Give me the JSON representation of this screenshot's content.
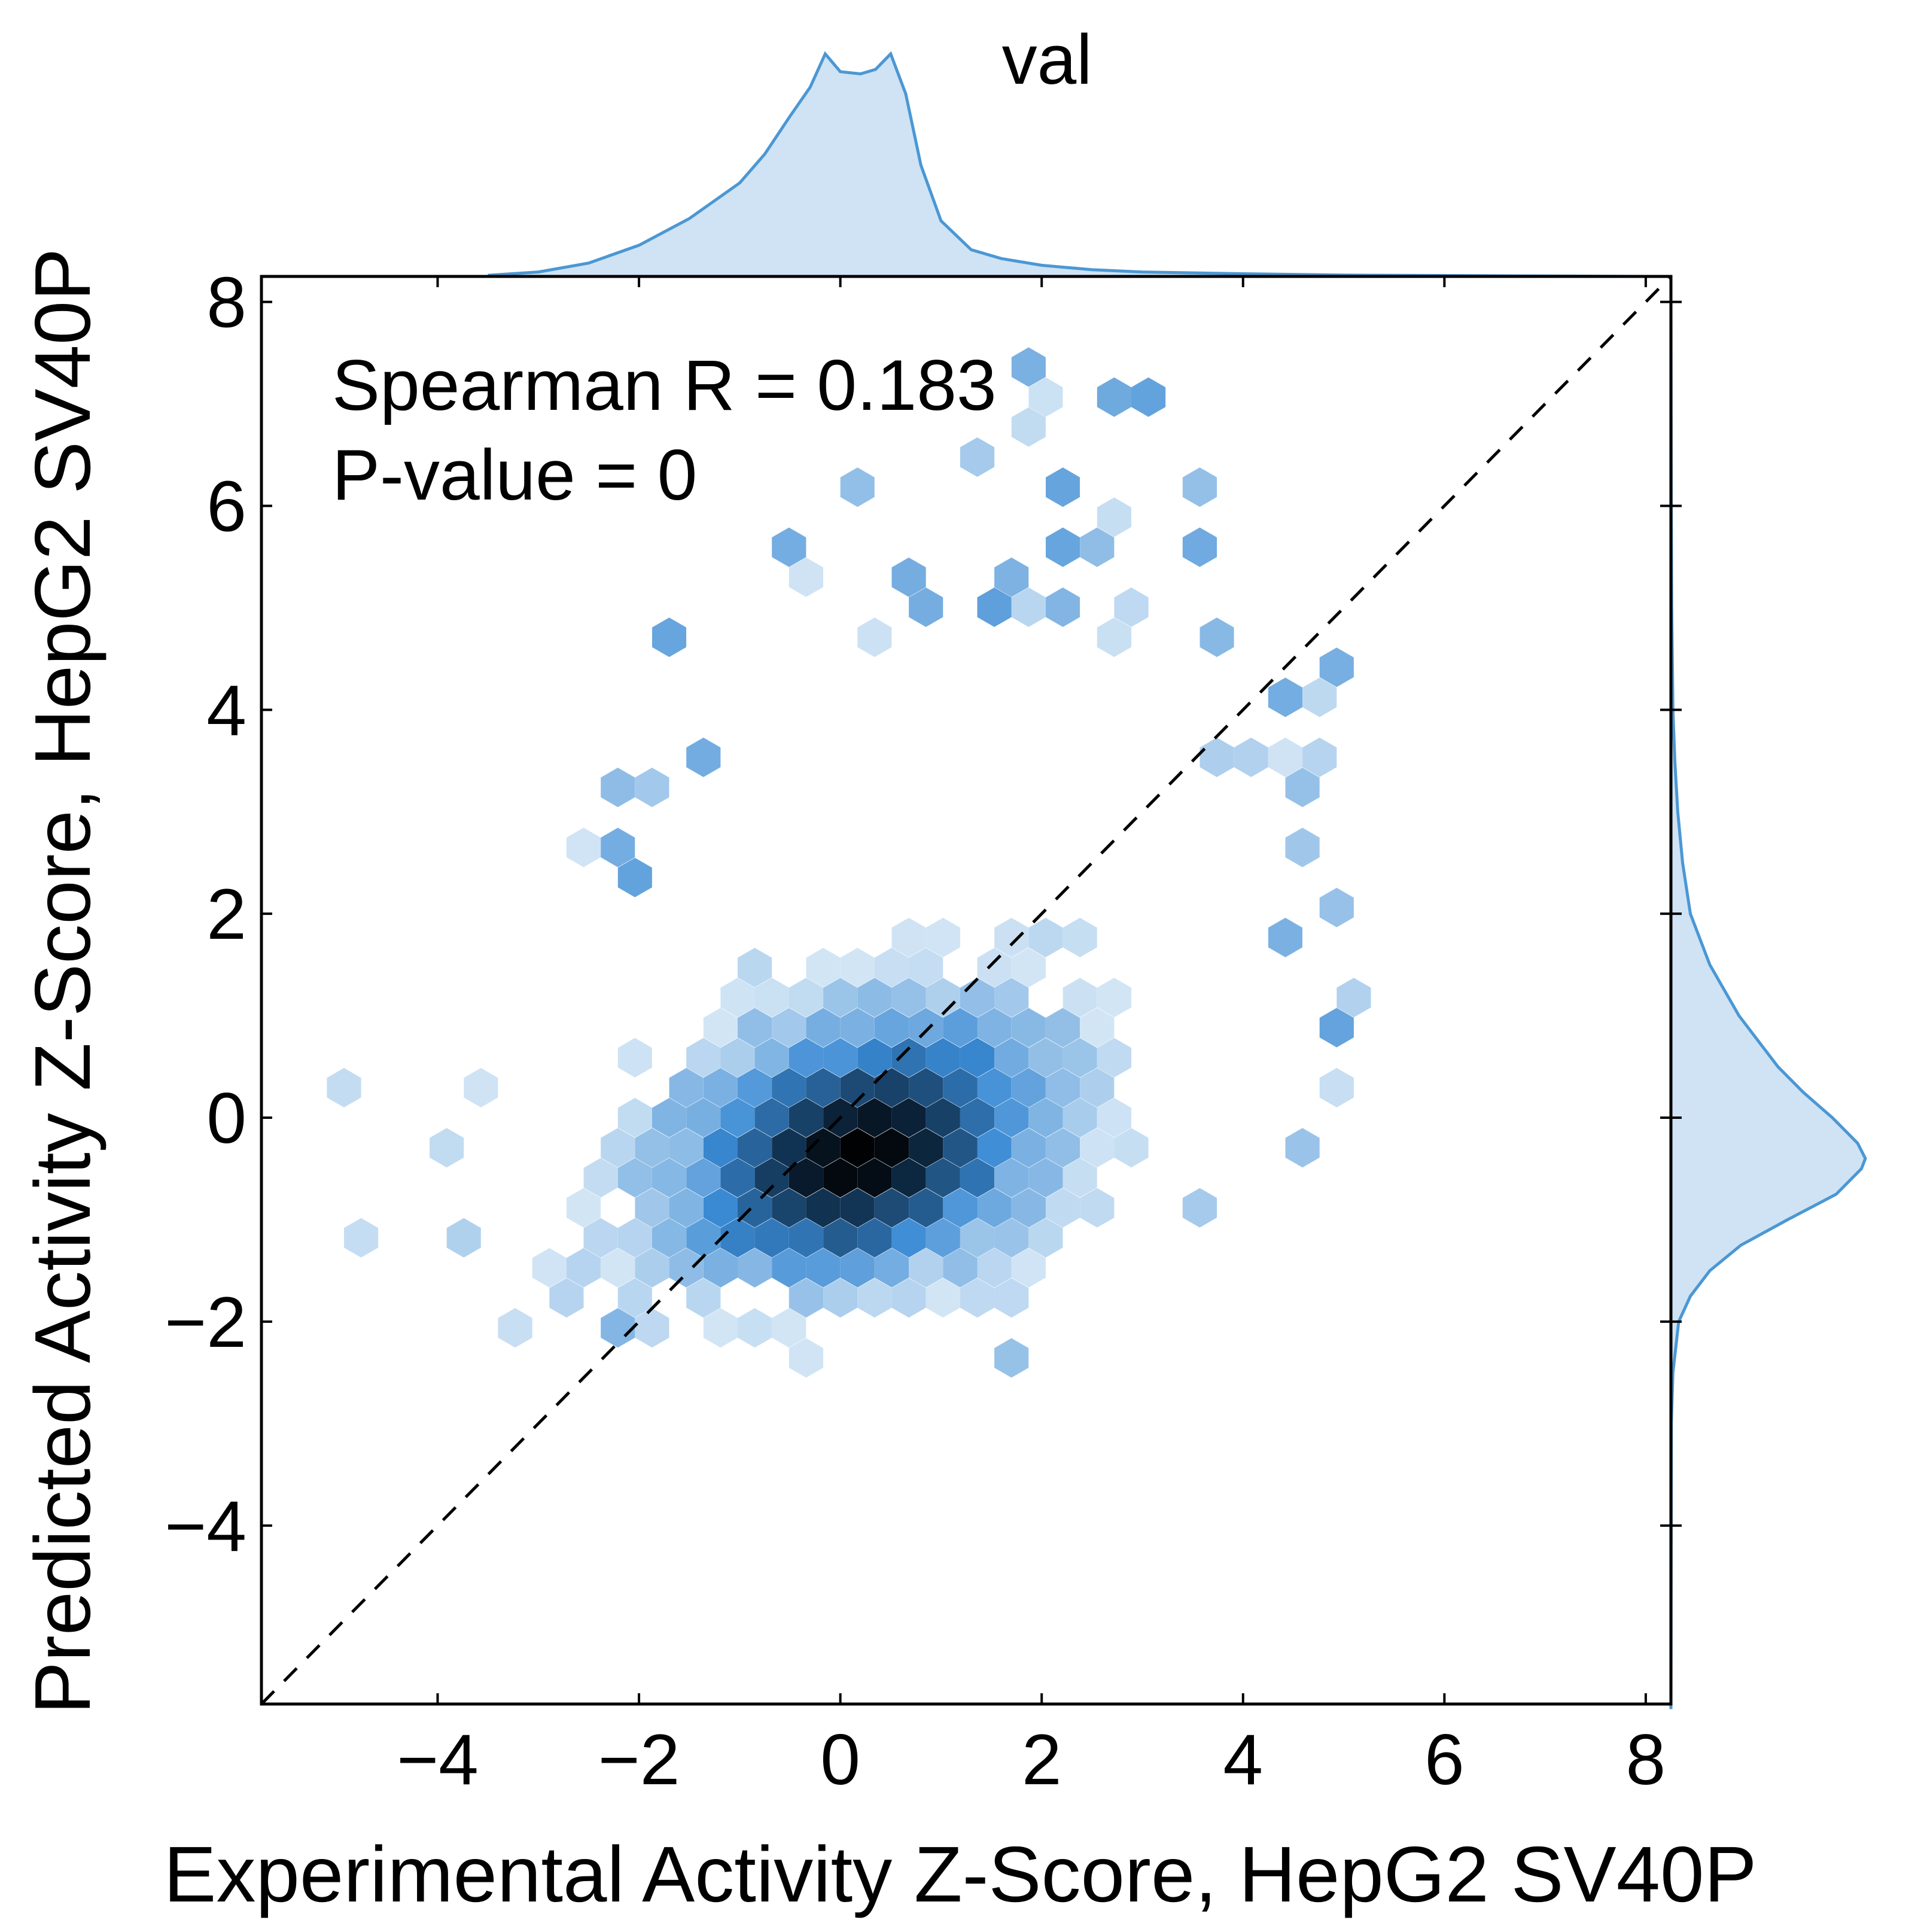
{
  "chart_data": {
    "type": "hexbin",
    "title": "val",
    "xlabel": "Experimental Activity Z-Score, HepG2 SV40P",
    "ylabel": "Predicted Activity Z-Score, HepG2 SV40P",
    "xlim": [
      -5.75,
      8.25
    ],
    "ylim": [
      -5.75,
      8.25
    ],
    "xticks": [
      -4,
      -2,
      0,
      2,
      4,
      6,
      8
    ],
    "yticks": [
      -4,
      -2,
      0,
      2,
      4,
      6,
      8
    ],
    "xtick_labels": [
      "−4",
      "−2",
      "0",
      "2",
      "4",
      "6",
      "8"
    ],
    "ytick_labels": [
      "−4",
      "−2",
      "0",
      "2",
      "4",
      "6",
      "8"
    ],
    "annotation": [
      "Spearman R = 0.183",
      "P-value = 0"
    ],
    "reference_line": {
      "type": "identity",
      "style": "dashed",
      "color": "#000000"
    },
    "density_center": {
      "x": 0.2,
      "y": -0.4
    },
    "density_spread": {
      "sx_left": 1.05,
      "sx_right": 1.0,
      "sy_down": 0.65,
      "sy_up": 0.8,
      "rho": 0.3
    },
    "outliers": [
      {
        "x": -5.0,
        "y": 0.2
      },
      {
        "x": -4.8,
        "y": -1.25
      },
      {
        "x": -1.7,
        "y": 4.6
      },
      {
        "x": 0.1,
        "y": 6.2
      },
      {
        "x": -0.5,
        "y": 5.5
      },
      {
        "x": 1.3,
        "y": 6.5
      },
      {
        "x": 1.9,
        "y": 7.5
      },
      {
        "x": 2.2,
        "y": 7.0
      },
      {
        "x": 2.6,
        "y": 7.2
      },
      {
        "x": 3.1,
        "y": 7.0
      },
      {
        "x": 2.0,
        "y": 6.7
      },
      {
        "x": 2.2,
        "y": 6.3
      },
      {
        "x": 2.8,
        "y": 6.0
      },
      {
        "x": 3.5,
        "y": 6.1
      },
      {
        "x": 2.2,
        "y": 5.6
      },
      {
        "x": 2.6,
        "y": 5.7
      },
      {
        "x": 2.5,
        "y": 5.5
      },
      {
        "x": 3.5,
        "y": 5.6
      },
      {
        "x": 1.7,
        "y": 5.2
      },
      {
        "x": 1.4,
        "y": 4.9
      },
      {
        "x": 1.7,
        "y": 4.9
      },
      {
        "x": 2.1,
        "y": 4.9
      },
      {
        "x": 2.9,
        "y": 4.9
      },
      {
        "x": 2.8,
        "y": 4.6
      },
      {
        "x": 3.7,
        "y": 4.6
      },
      {
        "x": 4.8,
        "y": 4.4
      },
      {
        "x": 4.3,
        "y": 4.1
      },
      {
        "x": 4.6,
        "y": 4.1
      },
      {
        "x": 3.7,
        "y": 3.5
      },
      {
        "x": 4.1,
        "y": 3.5
      },
      {
        "x": 4.4,
        "y": 3.5
      },
      {
        "x": 4.8,
        "y": 3.5
      },
      {
        "x": 4.5,
        "y": 3.2
      },
      {
        "x": 4.5,
        "y": 2.6
      },
      {
        "x": 4.9,
        "y": 2.0
      },
      {
        "x": 4.3,
        "y": 1.7
      },
      {
        "x": 5.1,
        "y": 1.1
      },
      {
        "x": 4.9,
        "y": 0.8
      },
      {
        "x": 4.9,
        "y": 0.2
      },
      {
        "x": 4.6,
        "y": -0.4
      },
      {
        "x": 3.5,
        "y": -1.0
      },
      {
        "x": 1.7,
        "y": -2.5
      },
      {
        "x": -2.1,
        "y": -2.0
      },
      {
        "x": -3.2,
        "y": -2.0
      },
      {
        "x": -3.9,
        "y": -1.3
      },
      {
        "x": -4.0,
        "y": -0.4
      },
      {
        "x": -3.7,
        "y": 0.2
      },
      {
        "x": -2.5,
        "y": 2.6
      },
      {
        "x": -2.3,
        "y": 3.2
      },
      {
        "x": -1.9,
        "y": 3.2
      },
      {
        "x": -1.5,
        "y": 3.5
      },
      {
        "x": 0.6,
        "y": 5.2
      },
      {
        "x": 0.8,
        "y": 4.9
      },
      {
        "x": 0.4,
        "y": 4.6
      },
      {
        "x": -2.1,
        "y": 2.6
      },
      {
        "x": -2.0,
        "y": 2.3
      },
      {
        "x": -0.3,
        "y": 5.2
      }
    ],
    "marginal_x": {
      "x": [
        -3.5,
        -3.0,
        -2.5,
        -2.0,
        -1.5,
        -1.0,
        -0.75,
        -0.5,
        -0.3,
        -0.15,
        0.0,
        0.2,
        0.35,
        0.5,
        0.65,
        0.8,
        1.0,
        1.3,
        1.6,
        2.0,
        2.5,
        3.0,
        4.0,
        5.0,
        6.0,
        7.0,
        8.0
      ],
      "density": [
        0.005,
        0.02,
        0.06,
        0.14,
        0.26,
        0.42,
        0.55,
        0.72,
        0.85,
        1.0,
        0.92,
        0.91,
        0.93,
        1.0,
        0.82,
        0.5,
        0.25,
        0.12,
        0.08,
        0.05,
        0.03,
        0.02,
        0.012,
        0.006,
        0.004,
        0.002,
        0.0
      ]
    },
    "marginal_y": {
      "y": [
        -5.8,
        -3.0,
        -2.5,
        -2.0,
        -1.75,
        -1.5,
        -1.25,
        -1.0,
        -0.75,
        -0.5,
        -0.4,
        -0.25,
        0.0,
        0.25,
        0.5,
        1.0,
        1.5,
        2.0,
        2.5,
        3.0,
        3.5,
        4.0,
        5.0,
        6.0,
        8.0
      ],
      "density": [
        0.0,
        0.002,
        0.01,
        0.04,
        0.1,
        0.2,
        0.36,
        0.6,
        0.85,
        0.98,
        1.0,
        0.96,
        0.83,
        0.68,
        0.55,
        0.35,
        0.2,
        0.1,
        0.06,
        0.035,
        0.02,
        0.01,
        0.004,
        0.0015,
        0.0
      ]
    },
    "colors": {
      "hex_light": "#d2e5f5",
      "hex_mid": "#3a8ad4",
      "hex_dark": "#0e2c48",
      "hex_black": "#000000",
      "marginal_fill": "#cfe3f4",
      "marginal_line": "#4b97d4",
      "axes": "#000000"
    }
  }
}
